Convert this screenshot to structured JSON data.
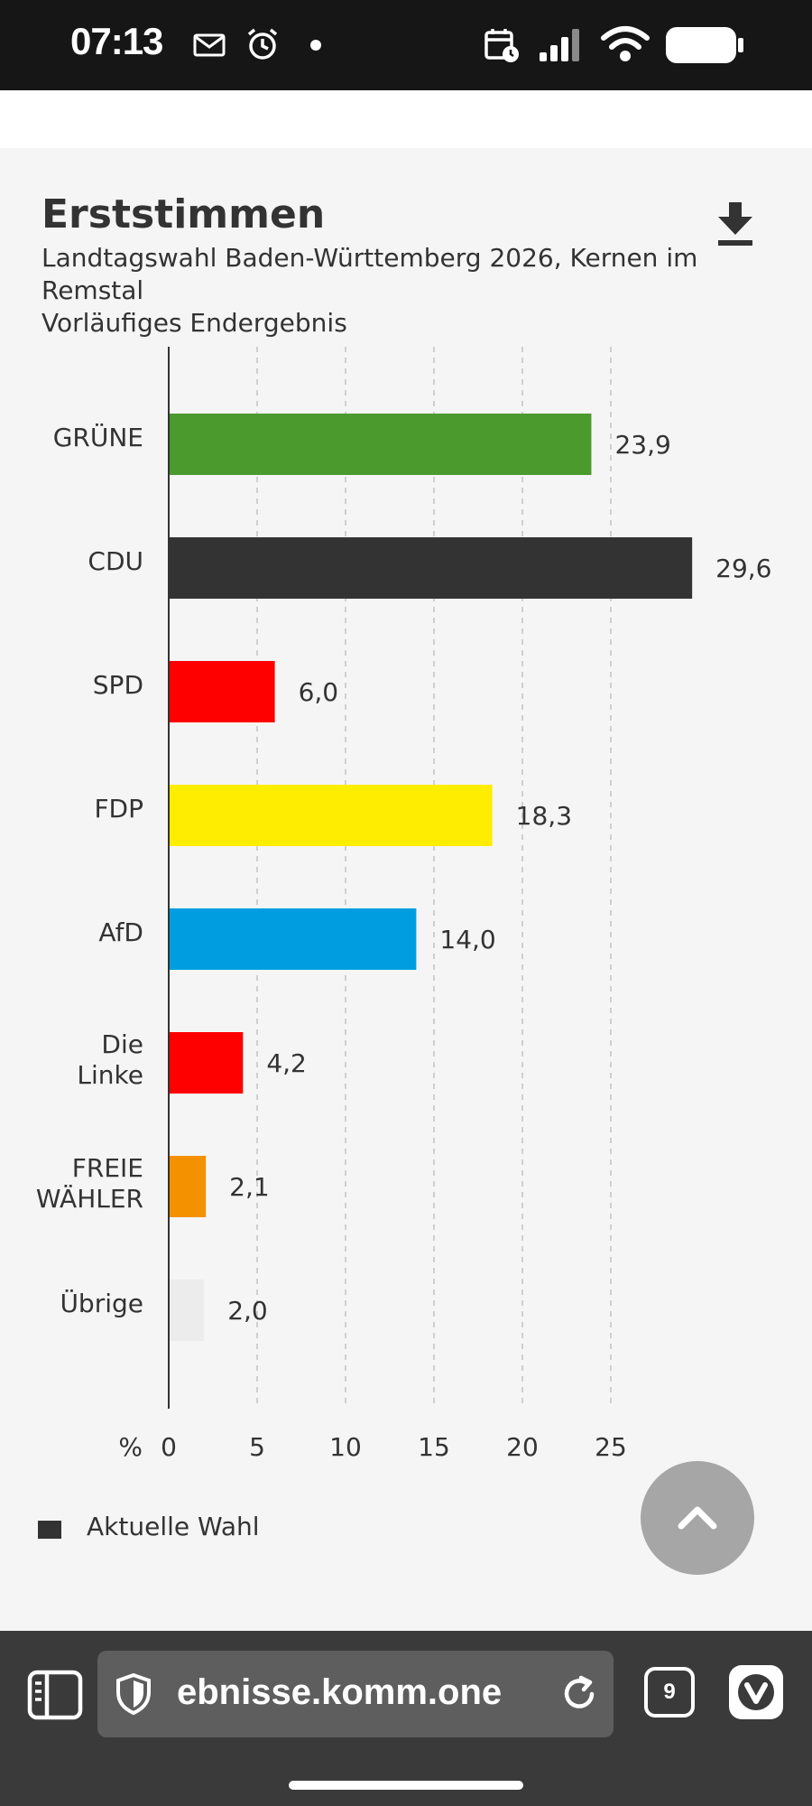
{
  "status_bar": {
    "time": "07:13",
    "icons": [
      "mail-icon",
      "alarm-icon",
      "notification-dot-icon",
      "calendar-icon",
      "signal-icon",
      "wifi-icon",
      "battery-icon"
    ]
  },
  "chart": {
    "title": "Erststimmen",
    "subtitle": "Landtagswahl Baden-Württemberg 2026, Kernen im Remstal",
    "status": "Vorläufiges Endergebnis",
    "axis_unit": "%",
    "legend_label": "Aktuelle Wahl",
    "download_icon": "download-icon"
  },
  "chart_data": {
    "type": "bar",
    "orientation": "horizontal",
    "title": "Erststimmen",
    "subtitle": "Landtagswahl Baden-Württemberg 2026, Kernen im Remstal",
    "xlabel": "%",
    "xlim": [
      0,
      30
    ],
    "ticks": [
      0,
      5,
      10,
      15,
      20,
      25
    ],
    "grid": true,
    "series": [
      {
        "name": "Aktuelle Wahl"
      }
    ],
    "bars": [
      {
        "label": [
          "GRÜNE"
        ],
        "value": 23.9,
        "value_label": "23,9",
        "color": "#4a9a2e"
      },
      {
        "label": [
          "CDU"
        ],
        "value": 29.6,
        "value_label": "29,6",
        "color": "#333333"
      },
      {
        "label": [
          "SPD"
        ],
        "value": 6.0,
        "value_label": "6,0",
        "color": "#ff0000"
      },
      {
        "label": [
          "FDP"
        ],
        "value": 18.3,
        "value_label": "18,3",
        "color": "#ffed00"
      },
      {
        "label": [
          "AfD"
        ],
        "value": 14.0,
        "value_label": "14,0",
        "color": "#009ee0"
      },
      {
        "label": [
          "Die",
          "Linke"
        ],
        "value": 4.2,
        "value_label": "4,2",
        "color": "#ff0000"
      },
      {
        "label": [
          "FREIE",
          "WÄHLER"
        ],
        "value": 2.1,
        "value_label": "2,1",
        "color": "#f39100"
      },
      {
        "label": [
          "Übrige"
        ],
        "value": 2.0,
        "value_label": "2,0",
        "color": "#ececec"
      }
    ]
  },
  "browser": {
    "url": "ebnisse.komm.one",
    "tab_count": "9"
  }
}
